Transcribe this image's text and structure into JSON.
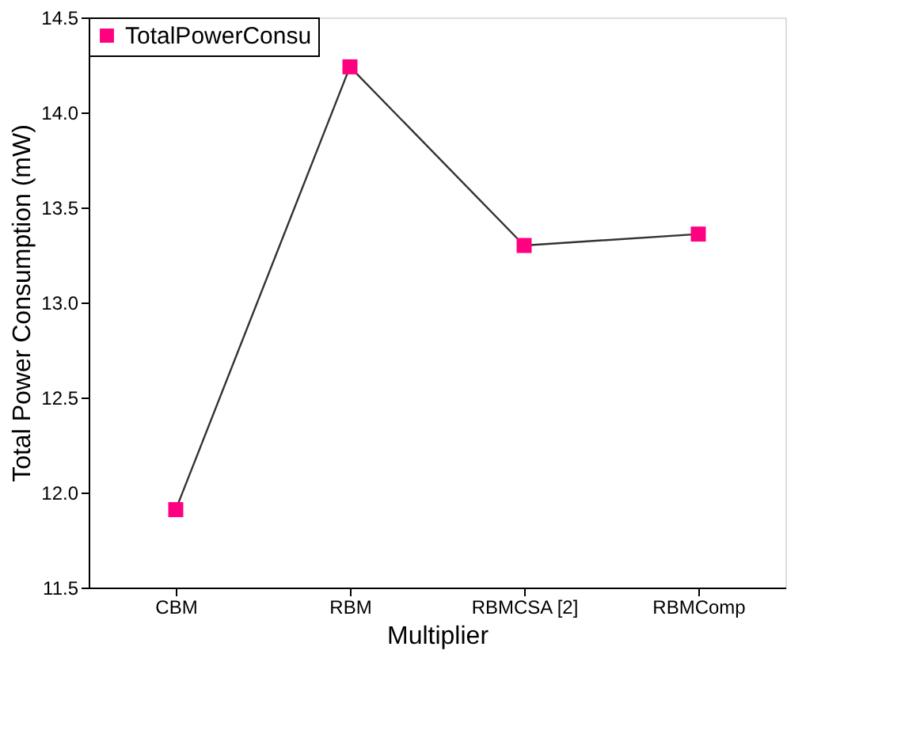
{
  "chart_data": {
    "type": "line",
    "xlabel": "Multiplier",
    "ylabel": "Total Power Consumption (mW)",
    "categories": [
      "CBM",
      "RBM",
      "RBMCSA [2]",
      "RBMComp"
    ],
    "series": [
      {
        "name": "TotalPowerConsu",
        "color": "#ff0080",
        "values": [
          11.91,
          14.24,
          13.3,
          13.36
        ]
      }
    ],
    "ylim": [
      11.5,
      14.5
    ],
    "yticks": [
      11.5,
      {
        "value": 12,
        "label": "12.0"
      },
      12.5,
      {
        "value": 13,
        "label": "13.0"
      },
      13.5,
      {
        "value": 14,
        "label": "14.0"
      },
      14.5
    ],
    "marker": "square",
    "line_style": "solid",
    "grid": false,
    "legend": "top left"
  }
}
